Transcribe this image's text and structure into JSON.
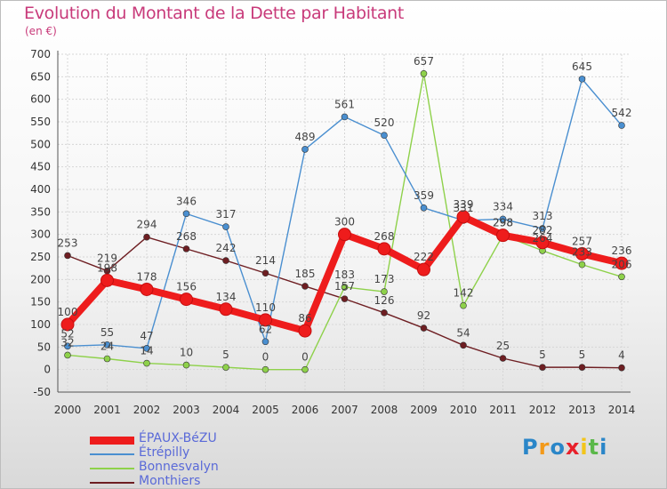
{
  "chart_data": {
    "type": "line",
    "title": "Evolution du Montant de la Dette par Habitant",
    "subtitle": "(en €)",
    "x": [
      "2000",
      "2001",
      "2002",
      "2003",
      "2004",
      "2005",
      "2006",
      "2007",
      "2008",
      "2009",
      "2010",
      "2011",
      "2012",
      "2013",
      "2014"
    ],
    "ylim": [
      -50,
      700
    ],
    "yticks": [
      -50,
      0,
      50,
      100,
      150,
      200,
      250,
      300,
      350,
      400,
      450,
      500,
      550,
      600,
      650,
      700
    ],
    "grid": true,
    "series": [
      {
        "name": "ÉPAUX-BéZU",
        "color": "#ee1c1c",
        "values": [
          100,
          198,
          178,
          156,
          134,
          110,
          86,
          300,
          268,
          222,
          339,
          298,
          282,
          257,
          236
        ]
      },
      {
        "name": "Étrépilly",
        "color": "#4a8fd0",
        "values": [
          52,
          55,
          47,
          346,
          317,
          62,
          489,
          561,
          520,
          359,
          331,
          334,
          313,
          645,
          542
        ]
      },
      {
        "name": "Bonnesvalyn",
        "color": "#8ed14a",
        "values": [
          32,
          24,
          14,
          10,
          5,
          0,
          0,
          183,
          173,
          657,
          142,
          298,
          264,
          233,
          206
        ]
      },
      {
        "name": "Monthiers",
        "color": "#6e1e22",
        "values": [
          253,
          219,
          294,
          268,
          242,
          214,
          185,
          157,
          126,
          92,
          54,
          25,
          5,
          5,
          4
        ]
      }
    ]
  },
  "logo": {
    "letters": [
      "P",
      "r",
      "o",
      "x",
      "i",
      "t",
      "i"
    ],
    "colors": [
      "#2a86c8",
      "#f39a1a",
      "#2a86c8",
      "#e8202a",
      "#f3c51a",
      "#5bb84a",
      "#2a86c8"
    ]
  }
}
